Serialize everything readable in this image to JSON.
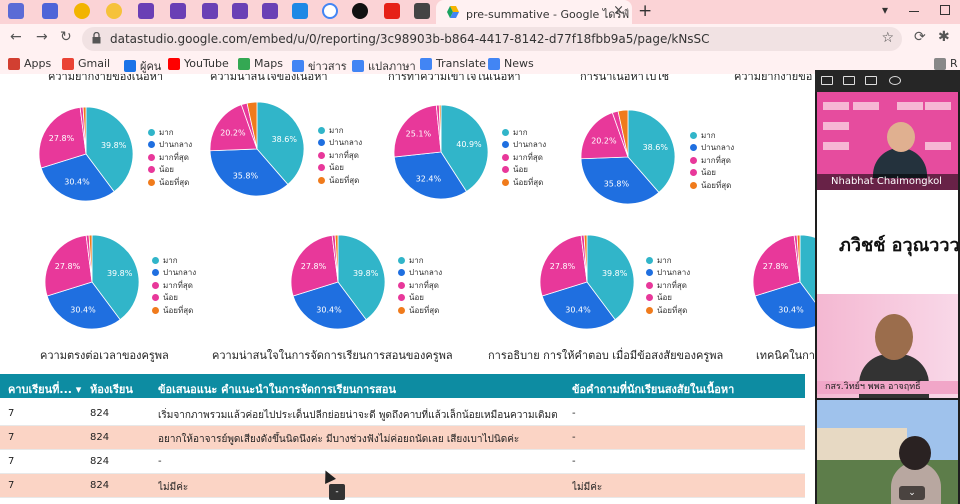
{
  "browser": {
    "active_tab_title": "pre-summative - Google ไดรฟ์",
    "url": "datastudio.google.com/embed/u/0/reporting/3c98903b-b864-4417-8142-d77f18fbb9a5/page/kNsSC",
    "tab_close": "×",
    "new_tab": "+"
  },
  "bookmarks": [
    {
      "label": "Apps",
      "color": "#d23f31"
    },
    {
      "label": "Gmail",
      "color": "#ea4335"
    },
    {
      "label": "ผู้คน",
      "color": "#1a73e8"
    },
    {
      "label": "YouTube",
      "color": "#ff0000"
    },
    {
      "label": "Maps",
      "color": "#34a853"
    },
    {
      "label": "ข่าวสาร",
      "color": "#4285f4"
    },
    {
      "label": "แปลภาษา",
      "color": "#4285f4"
    },
    {
      "label": "Translate",
      "color": "#4285f4"
    },
    {
      "label": "News",
      "color": "#4285f4"
    }
  ],
  "colors": {
    "mak": "#31b5c9",
    "pan_klang": "#1f6fe0",
    "mak_thi_sut": "#e8389a",
    "noi": "#e8389a",
    "noi_thi_sut": "#f07b1c",
    "table_header": "#0d8ca2",
    "row_alt": "#fbd4c5"
  },
  "legend_labels": [
    "มาก",
    "ปานกลาง",
    "มากที่สุด",
    "น้อย",
    "น้อยที่สุด"
  ],
  "chart_data": [
    {
      "type": "pie",
      "title": "ความยากง่ายของเนื้อหา",
      "labels": [
        "มาก",
        "ปานกลาง",
        "มากที่สุด",
        "น้อย",
        "น้อยที่สุด"
      ],
      "values": [
        39.8,
        30.4,
        27.8,
        1.0,
        1.0
      ]
    },
    {
      "type": "pie",
      "title": "ความน่าสนใจของเนื้อหา",
      "labels": [
        "มาก",
        "ปานกลาง",
        "มากที่สุด",
        "น้อย",
        "น้อยที่สุด"
      ],
      "values": [
        38.6,
        35.8,
        20.2,
        2.0,
        3.4
      ]
    },
    {
      "type": "pie",
      "title": "การทำความเข้าใจในเนื้อหา",
      "labels": [
        "มาก",
        "ปานกลาง",
        "มากที่สุด",
        "น้อย",
        "น้อยที่สุด"
      ],
      "values": [
        40.9,
        32.4,
        25.1,
        1.0,
        0.6
      ]
    },
    {
      "type": "pie",
      "title": "การนำเนื้อหาไปใช้",
      "labels": [
        "มาก",
        "ปานกลาง",
        "มากที่สุด",
        "น้อย",
        "น้อยที่สุด"
      ],
      "values": [
        38.6,
        35.8,
        20.2,
        2.0,
        3.4
      ]
    },
    {
      "type": "pie",
      "title": "ความตรงต่อเวลาของครูพล",
      "labels": [
        "มาก",
        "ปานกลาง",
        "มากที่สุด",
        "น้อย",
        "น้อยที่สุด"
      ],
      "values": [
        39.8,
        30.4,
        27.8,
        1.0,
        1.0
      ]
    },
    {
      "type": "pie",
      "title": "ความน่าสนใจในการจัดการเรียนการสอนของครูพล",
      "labels": [
        "มาก",
        "ปานกลาง",
        "มากที่สุด",
        "น้อย",
        "น้อยที่สุด"
      ],
      "values": [
        39.8,
        30.4,
        27.8,
        1.0,
        1.0
      ]
    },
    {
      "type": "pie",
      "title": "การอธิบาย การให้คำตอบ เมื่อมีข้อสงสัยของครูพล",
      "labels": [
        "มาก",
        "ปานกลาง",
        "มากที่สุด",
        "น้อย",
        "น้อยที่สุด"
      ],
      "values": [
        39.8,
        30.4,
        27.8,
        1.0,
        1.0
      ]
    },
    {
      "type": "pie",
      "title": "เทคนิคในการ",
      "labels": [
        "มาก",
        "ปานกลาง",
        "มากที่สุด",
        "น้อย",
        "น้อยที่สุด"
      ],
      "values": [
        39.8,
        30.4,
        27.8,
        1.0,
        1.0
      ]
    }
  ],
  "partial_title_right": "ความยากง่ายขอ",
  "table": {
    "headers": [
      "คาบเรียนที่...",
      "ห้องเรียน",
      "ข้อเสนอแนะ คำแนะนำในการจัดการเรียนการสอน",
      "ข้อคำถามที่นักเรียนสงสัยในเนื้อหา"
    ],
    "sort_icon": "▾",
    "rows": [
      [
        "7",
        "824",
        "เริ่มจากภาพรวมแล้วค่อยไปประเด็นปลีกย่อยน่าจะดี พูดถึงคาบที่แล้วเล็กน้อยเหมือนความเดิมตอน...",
        "-"
      ],
      [
        "7",
        "824",
        "อยากให้อาจารย์พูดเสียงดังขึ้นนิดนึงค่ะ มีบางช่วงฟังไม่ค่อยถนัดเลย เสียงเบาไปนิดค่ะ",
        "-"
      ],
      [
        "7",
        "824",
        "-",
        "-"
      ],
      [
        "7",
        "824",
        "ไม่มีค่ะ",
        "ไม่มีค่ะ"
      ]
    ]
  },
  "video": {
    "name1": "Nhabhat Chaimongkol",
    "name2": "ภวิชช์ อวุณวววา",
    "caption3": "กสร.วิทย์ฯ พพล อาจฤทธิ์",
    "chevron": "⌄"
  }
}
